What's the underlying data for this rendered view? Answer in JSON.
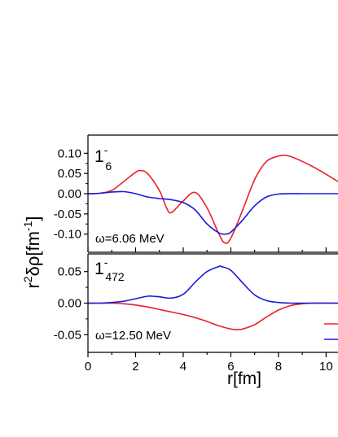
{
  "chart_data": [
    {
      "type": "line",
      "panel": "top",
      "state_label": {
        "main": "1",
        "superscript": "-",
        "subscript": "6"
      },
      "annotation": "ω=6.06 MeV",
      "ylabel": {
        "prefix": "r",
        "sup": "2",
        "mid": "δρ[fm",
        "sup2": "-1",
        "suffix": "]"
      },
      "ylim": [
        -0.145,
        0.145
      ],
      "yticks": [
        0.1,
        0.05,
        0.0,
        -0.05,
        -0.1
      ],
      "ytick_labels": [
        "0.10",
        "0.05",
        "0.00",
        "-0.05",
        "-0.10"
      ],
      "xlim": [
        0,
        10.5
      ],
      "series": [
        {
          "color": "#e8212a",
          "x": [
            0,
            0.5,
            1.0,
            1.5,
            2.0,
            2.2,
            2.5,
            3.0,
            3.3,
            3.5,
            4.0,
            4.5,
            5.0,
            5.5,
            5.75,
            6.0,
            6.5,
            7.0,
            7.5,
            8.0,
            8.25,
            8.5,
            9.0,
            9.5,
            10.0,
            10.5
          ],
          "y": [
            0.0,
            0.001,
            0.008,
            0.03,
            0.053,
            0.057,
            0.05,
            0.008,
            -0.035,
            -0.047,
            -0.018,
            0.003,
            -0.035,
            -0.1,
            -0.122,
            -0.11,
            -0.04,
            0.035,
            0.08,
            0.093,
            0.095,
            0.092,
            0.08,
            0.065,
            0.048,
            0.03
          ]
        },
        {
          "color": "#1a1adc",
          "x": [
            0,
            0.5,
            1.0,
            1.5,
            2.0,
            2.5,
            3.0,
            3.5,
            4.0,
            4.5,
            5.0,
            5.5,
            5.75,
            6.0,
            6.5,
            7.0,
            7.5,
            8.0,
            8.5,
            9.0,
            10.0,
            10.5
          ],
          "y": [
            0.0,
            0.001,
            0.004,
            0.005,
            0.0,
            -0.008,
            -0.012,
            -0.015,
            -0.022,
            -0.04,
            -0.075,
            -0.097,
            -0.1,
            -0.095,
            -0.065,
            -0.03,
            -0.008,
            -0.001,
            0.0,
            0.0,
            0.0,
            0.0
          ]
        }
      ]
    },
    {
      "type": "line",
      "panel": "bottom",
      "state_label": {
        "main": "1",
        "superscript": "-",
        "subscript": "472"
      },
      "annotation": "ω=12.50 MeV",
      "ylim": [
        -0.078,
        0.078
      ],
      "yticks": [
        0.05,
        0.0,
        -0.05
      ],
      "ytick_labels": [
        "0.05",
        "0.00",
        "-0.05"
      ],
      "xlim": [
        0,
        10.5
      ],
      "xticks": [
        0,
        2,
        4,
        6,
        8,
        10
      ],
      "xtick_labels": [
        "0",
        "2",
        "4",
        "6",
        "8",
        "10"
      ],
      "xlabel": "r[fm]",
      "series": [
        {
          "color": "#e8212a",
          "x": [
            0,
            0.5,
            1.0,
            1.5,
            2.0,
            2.5,
            3.0,
            3.5,
            4.0,
            4.5,
            5.0,
            5.5,
            6.0,
            6.25,
            6.5,
            7.0,
            7.5,
            8.0,
            8.5,
            9.0,
            9.5,
            10.0,
            10.5
          ],
          "y": [
            0.0,
            0.0,
            0.0,
            -0.001,
            -0.003,
            -0.006,
            -0.01,
            -0.014,
            -0.018,
            -0.023,
            -0.029,
            -0.036,
            -0.041,
            -0.042,
            -0.041,
            -0.034,
            -0.022,
            -0.011,
            -0.004,
            -0.001,
            0.0,
            0.0,
            0.0
          ]
        },
        {
          "color": "#1a1adc",
          "x": [
            0,
            0.5,
            1.0,
            1.5,
            2.0,
            2.5,
            2.7,
            3.0,
            3.5,
            4.0,
            4.5,
            5.0,
            5.5,
            5.6,
            6.0,
            6.5,
            7.0,
            7.5,
            8.0,
            8.5,
            9.0,
            10.0,
            10.5
          ],
          "y": [
            0.0,
            0.0,
            0.001,
            0.003,
            0.007,
            0.011,
            0.011,
            0.01,
            0.008,
            0.014,
            0.033,
            0.05,
            0.058,
            0.058,
            0.052,
            0.032,
            0.013,
            0.004,
            0.001,
            0.0,
            0.0,
            0.0,
            0.0
          ]
        }
      ]
    }
  ]
}
